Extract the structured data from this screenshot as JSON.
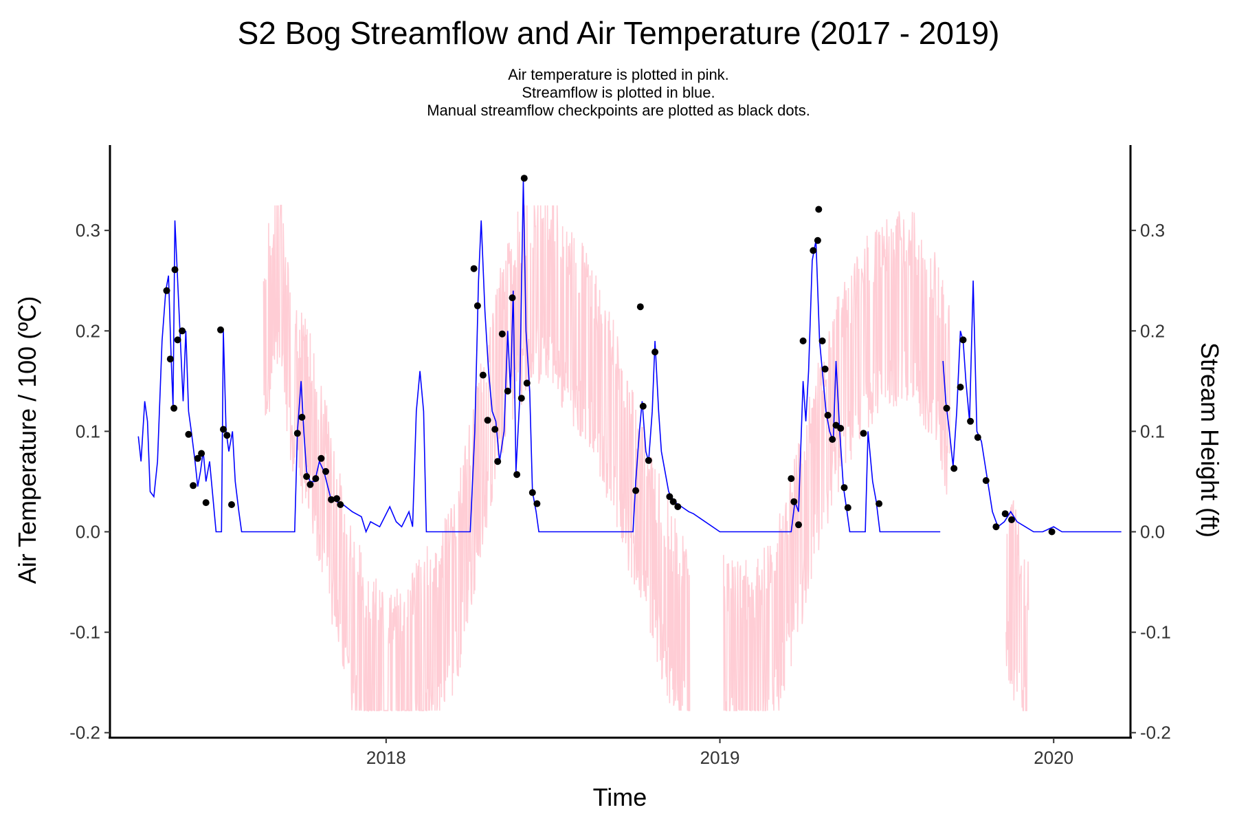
{
  "chart_data": {
    "type": "line",
    "title": "S2 Bog Streamflow and Air Temperature (2017 - 2019)",
    "subtitle": [
      "Air temperature is plotted in pink.",
      "Streamflow is plotted in blue.",
      "Manual streamflow checkpoints are plotted as black dots."
    ],
    "xlabel": "Time",
    "ylabel_left": "Air Temperature / 100 (ºC)",
    "ylabel_right": "Stream Height (ft)",
    "x_ticks": [
      "2018",
      "2019",
      "2020"
    ],
    "y_ticks": [
      "0.3",
      "0.2",
      "0.1",
      "0.0",
      "-0.1",
      "-0.2"
    ],
    "xlim": [
      "2017-03-05",
      "2020-03-25"
    ],
    "ylim": [
      -0.205,
      0.385
    ],
    "grid": false,
    "colors": {
      "streamflow": "#0000ff",
      "air_temperature": "#ffc0cb",
      "checkpoints": "#000000"
    },
    "series": [
      {
        "name": "Streamflow",
        "points": [
          [
            "2017-04-05",
            0.095
          ],
          [
            "2017-04-08",
            0.07
          ],
          [
            "2017-04-12",
            0.13
          ],
          [
            "2017-04-15",
            0.11
          ],
          [
            "2017-04-18",
            0.04
          ],
          [
            "2017-04-22",
            0.035
          ],
          [
            "2017-04-26",
            0.07
          ],
          [
            "2017-05-01",
            0.19
          ],
          [
            "2017-05-05",
            0.24
          ],
          [
            "2017-05-08",
            0.255
          ],
          [
            "2017-05-11",
            0.17
          ],
          [
            "2017-05-13",
            0.125
          ],
          [
            "2017-05-15",
            0.31
          ],
          [
            "2017-05-18",
            0.25
          ],
          [
            "2017-05-21",
            0.19
          ],
          [
            "2017-05-24",
            0.13
          ],
          [
            "2017-05-27",
            0.2
          ],
          [
            "2017-05-30",
            0.12
          ],
          [
            "2017-06-02",
            0.1
          ],
          [
            "2017-06-06",
            0.07
          ],
          [
            "2017-06-09",
            0.045
          ],
          [
            "2017-06-12",
            0.06
          ],
          [
            "2017-06-15",
            0.08
          ],
          [
            "2017-06-18",
            0.05
          ],
          [
            "2017-06-22",
            0.07
          ],
          [
            "2017-06-26",
            0.03
          ],
          [
            "2017-06-29",
            0.0
          ],
          [
            "2017-07-05",
            0.0
          ],
          [
            "2017-07-07",
            0.2
          ],
          [
            "2017-07-10",
            0.1
          ],
          [
            "2017-07-13",
            0.08
          ],
          [
            "2017-07-17",
            0.1
          ],
          [
            "2017-07-20",
            0.05
          ],
          [
            "2017-07-24",
            0.02
          ],
          [
            "2017-07-27",
            0.0
          ],
          [
            "2017-09-23",
            0.0
          ],
          [
            "2017-09-26",
            0.1
          ],
          [
            "2017-09-30",
            0.15
          ],
          [
            "2017-10-03",
            0.1
          ],
          [
            "2017-10-06",
            0.06
          ],
          [
            "2017-10-10",
            0.05
          ],
          [
            "2017-10-15",
            0.05
          ],
          [
            "2017-10-20",
            0.07
          ],
          [
            "2017-10-25",
            0.06
          ],
          [
            "2017-11-01",
            0.035
          ],
          [
            "2017-11-08",
            0.03
          ],
          [
            "2017-11-15",
            0.027
          ],
          [
            "2017-11-25",
            0.02
          ],
          [
            "2017-12-05",
            0.015
          ],
          [
            "2017-12-10",
            0.0
          ],
          [
            "2017-12-15",
            0.01
          ],
          [
            "2017-12-25",
            0.005
          ],
          [
            "2018-01-05",
            0.025
          ],
          [
            "2018-01-12",
            0.01
          ],
          [
            "2018-01-18",
            0.005
          ],
          [
            "2018-01-26",
            0.02
          ],
          [
            "2018-01-30",
            0.005
          ],
          [
            "2018-02-03",
            0.12
          ],
          [
            "2018-02-07",
            0.16
          ],
          [
            "2018-02-11",
            0.12
          ],
          [
            "2018-02-14",
            0.0
          ],
          [
            "2018-03-10",
            0.0
          ],
          [
            "2018-03-14",
            0.0
          ],
          [
            "2018-04-03",
            0.0
          ],
          [
            "2018-04-08",
            0.1
          ],
          [
            "2018-04-12",
            0.25
          ],
          [
            "2018-04-15",
            0.31
          ],
          [
            "2018-04-19",
            0.22
          ],
          [
            "2018-04-23",
            0.16
          ],
          [
            "2018-04-27",
            0.12
          ],
          [
            "2018-05-01",
            0.11
          ],
          [
            "2018-05-05",
            0.07
          ],
          [
            "2018-05-10",
            0.1
          ],
          [
            "2018-05-14",
            0.2
          ],
          [
            "2018-05-17",
            0.14
          ],
          [
            "2018-05-20",
            0.24
          ],
          [
            "2018-05-23",
            0.06
          ],
          [
            "2018-05-27",
            0.13
          ],
          [
            "2018-05-31",
            0.35
          ],
          [
            "2018-06-03",
            0.2
          ],
          [
            "2018-06-07",
            0.14
          ],
          [
            "2018-06-10",
            0.04
          ],
          [
            "2018-06-14",
            0.02
          ],
          [
            "2018-06-17",
            0.0
          ],
          [
            "2018-09-28",
            0.0
          ],
          [
            "2018-10-01",
            0.05
          ],
          [
            "2018-10-05",
            0.1
          ],
          [
            "2018-10-08",
            0.13
          ],
          [
            "2018-10-12",
            0.08
          ],
          [
            "2018-10-15",
            0.07
          ],
          [
            "2018-10-19",
            0.12
          ],
          [
            "2018-10-22",
            0.19
          ],
          [
            "2018-10-26",
            0.12
          ],
          [
            "2018-10-29",
            0.08
          ],
          [
            "2018-11-02",
            0.06
          ],
          [
            "2018-11-06",
            0.04
          ],
          [
            "2018-11-12",
            0.03
          ],
          [
            "2018-11-20",
            0.025
          ],
          [
            "2018-11-28",
            0.02
          ],
          [
            "2018-12-03",
            0.018
          ],
          [
            "2019-01-01",
            0.0
          ],
          [
            "2019-03-20",
            0.0
          ],
          [
            "2019-03-24",
            0.03
          ],
          [
            "2019-03-28",
            0.02
          ],
          [
            "2019-04-02",
            0.15
          ],
          [
            "2019-04-05",
            0.11
          ],
          [
            "2019-04-08",
            0.16
          ],
          [
            "2019-04-12",
            0.27
          ],
          [
            "2019-04-16",
            0.29
          ],
          [
            "2019-04-20",
            0.19
          ],
          [
            "2019-04-23",
            0.16
          ],
          [
            "2019-04-27",
            0.12
          ],
          [
            "2019-05-01",
            0.1
          ],
          [
            "2019-05-05",
            0.09
          ],
          [
            "2019-05-08",
            0.17
          ],
          [
            "2019-05-12",
            0.1
          ],
          [
            "2019-05-16",
            0.045
          ],
          [
            "2019-05-20",
            0.02
          ],
          [
            "2019-05-23",
            0.0
          ],
          [
            "2019-06-09",
            0.0
          ],
          [
            "2019-06-12",
            0.1
          ],
          [
            "2019-06-17",
            0.05
          ],
          [
            "2019-06-21",
            0.03
          ],
          [
            "2019-06-25",
            0.0
          ],
          [
            "2019-08-30",
            0.0
          ]
        ]
      },
      {
        "name": "Streamflow",
        "points": [
          [
            "2019-09-02",
            0.17
          ],
          [
            "2019-09-05",
            0.13
          ],
          [
            "2019-09-09",
            0.1
          ],
          [
            "2019-09-13",
            0.065
          ],
          [
            "2019-09-17",
            0.12
          ],
          [
            "2019-09-21",
            0.2
          ],
          [
            "2019-09-24",
            0.19
          ],
          [
            "2019-09-27",
            0.15
          ],
          [
            "2019-10-01",
            0.11
          ],
          [
            "2019-10-05",
            0.25
          ],
          [
            "2019-10-09",
            0.1
          ],
          [
            "2019-10-14",
            0.09
          ],
          [
            "2019-10-20",
            0.055
          ],
          [
            "2019-10-26",
            0.02
          ],
          [
            "2019-11-01",
            0.005
          ],
          [
            "2019-11-08",
            0.01
          ],
          [
            "2019-11-15",
            0.02
          ],
          [
            "2019-11-22",
            0.01
          ],
          [
            "2019-12-01",
            0.005
          ],
          [
            "2019-12-10",
            0.0
          ],
          [
            "2019-12-20",
            0.0
          ],
          [
            "2020-01-01",
            0.005
          ],
          [
            "2020-01-10",
            0.0
          ],
          [
            "2020-03-15",
            0.0
          ]
        ]
      },
      {
        "name": "Air temperature / 100",
        "segments": [
          [
            [
              "2017-08-20",
              0.18
            ],
            [
              "2017-09-05",
              0.27
            ],
            [
              "2017-09-20",
              0.15
            ],
            [
              "2017-10-10",
              0.1
            ],
            [
              "2017-10-30",
              0.02
            ],
            [
              "2017-11-20",
              -0.08
            ],
            [
              "2017-12-15",
              -0.14
            ],
            [
              "2018-01-10",
              -0.16
            ],
            [
              "2018-02-05",
              -0.12
            ],
            [
              "2018-02-28",
              -0.1
            ],
            [
              "2018-03-20",
              -0.05
            ],
            [
              "2018-04-10",
              0.05
            ],
            [
              "2018-05-01",
              0.15
            ],
            [
              "2018-05-25",
              0.22
            ],
            [
              "2018-06-20",
              0.25
            ],
            [
              "2018-07-15",
              0.22
            ],
            [
              "2018-08-10",
              0.18
            ],
            [
              "2018-09-05",
              0.12
            ],
            [
              "2018-09-25",
              0.05
            ],
            [
              "2018-10-20",
              -0.02
            ],
            [
              "2018-11-10",
              -0.08
            ],
            [
              "2018-11-30",
              -0.12
            ]
          ],
          [
            [
              "2019-01-05",
              -0.12
            ],
            [
              "2019-02-05",
              -0.13
            ],
            [
              "2019-03-01",
              -0.1
            ],
            [
              "2019-03-25",
              -0.02
            ],
            [
              "2019-04-20",
              0.08
            ],
            [
              "2019-05-15",
              0.15
            ],
            [
              "2019-06-10",
              0.2
            ],
            [
              "2019-07-05",
              0.22
            ],
            [
              "2019-08-01",
              0.22
            ],
            [
              "2019-08-25",
              0.18
            ],
            [
              "2019-09-10",
              0.12
            ]
          ],
          [
            [
              "2019-11-10",
              -0.04
            ],
            [
              "2019-11-25",
              -0.09
            ],
            [
              "2019-12-05",
              -0.13
            ]
          ]
        ]
      },
      {
        "name": "Manual streamflow checkpoints",
        "points": [
          [
            "2017-05-06",
            0.24
          ],
          [
            "2017-05-10",
            0.172
          ],
          [
            "2017-05-14",
            0.123
          ],
          [
            "2017-05-15",
            0.261
          ],
          [
            "2017-05-18",
            0.191
          ],
          [
            "2017-05-23",
            0.2
          ],
          [
            "2017-05-30",
            0.097
          ],
          [
            "2017-06-04",
            0.046
          ],
          [
            "2017-06-09",
            0.073
          ],
          [
            "2017-06-13",
            0.078
          ],
          [
            "2017-06-18",
            0.029
          ],
          [
            "2017-07-04",
            0.201
          ],
          [
            "2017-07-07",
            0.102
          ],
          [
            "2017-07-11",
            0.096
          ],
          [
            "2017-07-16",
            0.027
          ],
          [
            "2017-09-26",
            0.098
          ],
          [
            "2017-10-01",
            0.114
          ],
          [
            "2017-10-06",
            0.055
          ],
          [
            "2017-10-10",
            0.047
          ],
          [
            "2017-10-16",
            0.053
          ],
          [
            "2017-10-22",
            0.073
          ],
          [
            "2017-10-27",
            0.06
          ],
          [
            "2017-11-02",
            0.032
          ],
          [
            "2017-11-08",
            0.033
          ],
          [
            "2017-11-12",
            0.027
          ],
          [
            "2018-04-07",
            0.262
          ],
          [
            "2018-04-11",
            0.225
          ],
          [
            "2018-04-17",
            0.156
          ],
          [
            "2018-04-22",
            0.111
          ],
          [
            "2018-04-30",
            0.102
          ],
          [
            "2018-05-03",
            0.07
          ],
          [
            "2018-05-08",
            0.197
          ],
          [
            "2018-05-14",
            0.14
          ],
          [
            "2018-05-19",
            0.233
          ],
          [
            "2018-05-24",
            0.057
          ],
          [
            "2018-05-29",
            0.133
          ],
          [
            "2018-06-01",
            0.352
          ],
          [
            "2018-06-04",
            0.148
          ],
          [
            "2018-06-10",
            0.039
          ],
          [
            "2018-06-15",
            0.028
          ],
          [
            "2018-10-01",
            0.041
          ],
          [
            "2018-10-06",
            0.224
          ],
          [
            "2018-10-09",
            0.125
          ],
          [
            "2018-10-15",
            0.071
          ],
          [
            "2018-10-22",
            0.179
          ],
          [
            "2018-11-07",
            0.035
          ],
          [
            "2018-11-11",
            0.03
          ],
          [
            "2018-11-16",
            0.025
          ],
          [
            "2019-03-20",
            0.053
          ],
          [
            "2019-03-23",
            0.03
          ],
          [
            "2019-03-28",
            0.007
          ],
          [
            "2019-04-02",
            0.19
          ],
          [
            "2019-04-13",
            0.28
          ],
          [
            "2019-04-18",
            0.29
          ],
          [
            "2019-04-19",
            0.321
          ],
          [
            "2019-04-23",
            0.19
          ],
          [
            "2019-04-26",
            0.162
          ],
          [
            "2019-04-29",
            0.116
          ],
          [
            "2019-05-04",
            0.092
          ],
          [
            "2019-05-08",
            0.106
          ],
          [
            "2019-05-13",
            0.103
          ],
          [
            "2019-05-17",
            0.044
          ],
          [
            "2019-05-21",
            0.024
          ],
          [
            "2019-06-07",
            0.098
          ],
          [
            "2019-06-24",
            0.028
          ],
          [
            "2019-09-06",
            0.123
          ],
          [
            "2019-09-14",
            0.063
          ],
          [
            "2019-09-21",
            0.144
          ],
          [
            "2019-09-24",
            0.191
          ],
          [
            "2019-10-02",
            0.11
          ],
          [
            "2019-10-10",
            0.094
          ],
          [
            "2019-10-19",
            0.051
          ],
          [
            "2019-10-30",
            0.005
          ],
          [
            "2019-11-09",
            0.018
          ],
          [
            "2019-11-16",
            0.012
          ],
          [
            "2019-12-30",
            0.0
          ]
        ]
      }
    ]
  }
}
